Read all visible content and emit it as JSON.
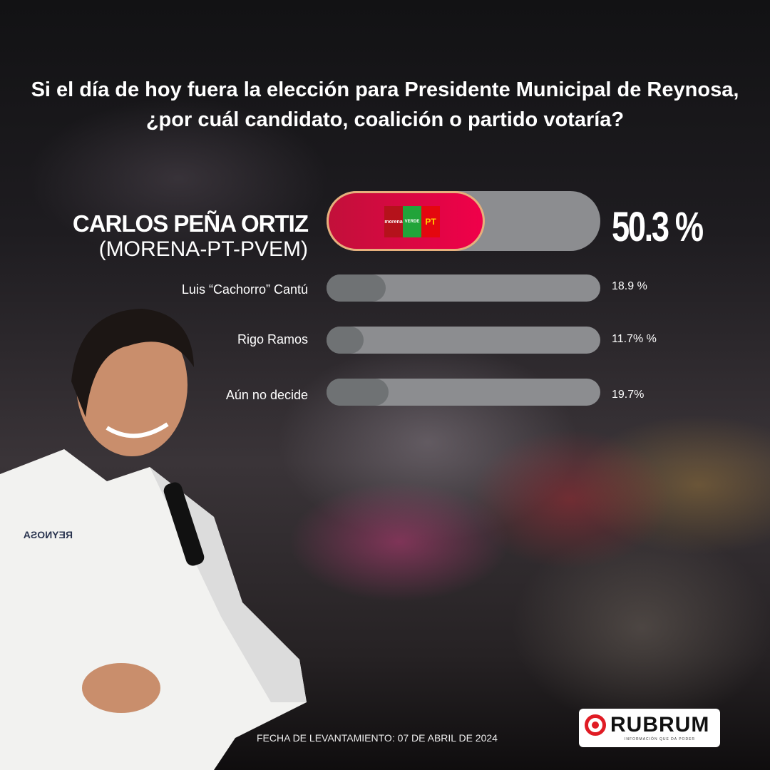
{
  "title_line1": "Si el día de hoy fuera la elección para Presidente Municipal de Reynosa,",
  "title_line2": "¿por cuál candidato, coalición o partido votaría?",
  "chart_data": {
    "type": "bar",
    "orientation": "horizontal",
    "categories": [
      "CARLOS PEÑA ORTIZ",
      "Luis “Cachorro” Cantú",
      "Rigo Ramos",
      "Aún no decide"
    ],
    "leader_party": "(MORENA-PT-PVEM)",
    "values": [
      50.3,
      18.9,
      11.7,
      19.7
    ],
    "value_labels": [
      "50.3 %",
      "18.9 %",
      "11.7% %",
      "19.7%"
    ],
    "colors": {
      "leader": "#e8003f",
      "others": "#6f7274",
      "track": "#8c8d90",
      "leader_border": "#e6b07c"
    }
  },
  "party_logos": [
    "morena",
    "VERDE",
    "PT"
  ],
  "shirt_logo": "REYNOSA",
  "footer": "FECHA DE LEVANTAMIENTO: 07 DE ABRIL DE 2024",
  "brand": {
    "name": "RUBRUM",
    "tagline": "INFORMACIÓN QUE DA PODER"
  }
}
